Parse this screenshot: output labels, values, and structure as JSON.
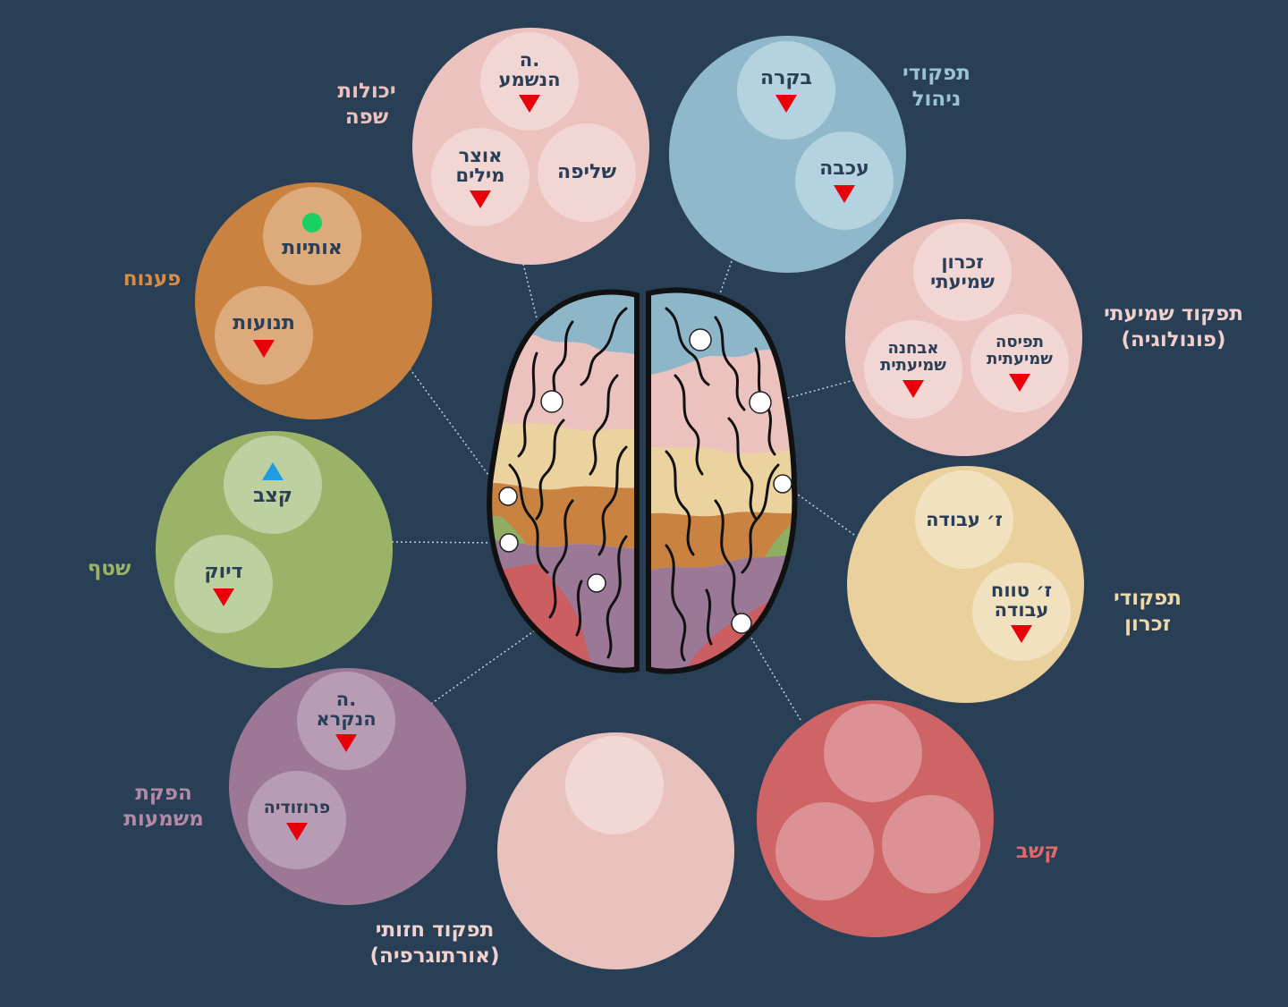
{
  "colors": {
    "background": "#283f55",
    "label_text": "#2a3f57",
    "decrease_marker": "#e8000b",
    "increase_marker": "#1e9de0",
    "normal_marker": "#18d160"
  },
  "groups": {
    "language": {
      "title_line1": "יכולות",
      "title_line2": "שפה",
      "color": "#ebc2be",
      "label_color": "#ebc2be",
      "items": {
        "auditory_comprehension": {
          "line1": "ה.",
          "line2": "הנשמע",
          "marker": "decrease"
        },
        "retrieval": {
          "line1": "שליפה",
          "marker": "none"
        },
        "vocabulary": {
          "line1": "אוצר",
          "line2": "מילים",
          "marker": "decrease"
        }
      }
    },
    "executive": {
      "title_line1": "תפקודי",
      "title_line2": "ניהול",
      "color": "#8fb8ca",
      "label_color": "#9cc3d3",
      "items": {
        "control": {
          "line1": "בקרה",
          "marker": "decrease"
        },
        "inhibition": {
          "line1": "עכבה",
          "marker": "decrease"
        }
      }
    },
    "decoding": {
      "title_line1": "פענוח",
      "color": "#c9823f",
      "label_color": "#d88c45",
      "items": {
        "letters": {
          "line1": "אותיות",
          "marker": "normal"
        },
        "vowels": {
          "line1": "תנועות",
          "marker": "decrease"
        }
      }
    },
    "auditory": {
      "title_line1": "תפקוד שמיעתי",
      "title_line2": "(פונולוגיה)",
      "color": "#ebc2be",
      "label_color": "#f0d0cc",
      "items": {
        "auditory_memory": {
          "line1": "זכרון",
          "line2": "שמיעתי",
          "marker": "none"
        },
        "auditory_perception": {
          "line1": "תפיסה",
          "line2": "שמיעתית",
          "marker": "decrease"
        },
        "auditory_discrimination": {
          "line1": "אבחנה",
          "line2": "שמיעתית",
          "marker": "decrease"
        }
      }
    },
    "fluency": {
      "title_line1": "שטף",
      "color": "#9ab368",
      "label_color": "#9ab368",
      "items": {
        "rate": {
          "line1": "קצב",
          "marker": "increase"
        },
        "accuracy": {
          "line1": "דיוק",
          "marker": "decrease"
        }
      }
    },
    "memory": {
      "title_line1": "תפקודי",
      "title_line2": "זכרון",
      "color": "#e9d09d",
      "label_color": "#f0d9a8",
      "items": {
        "working_memory": {
          "line1": "ז׳ עבודה",
          "marker": "none"
        },
        "long_working_memory": {
          "line1": "ז׳ טווח",
          "line2": "עבודה",
          "marker": "decrease"
        }
      }
    },
    "comprehension": {
      "title_line1": "הפקת",
      "title_line2": "משמעות",
      "color": "#9d7896",
      "label_color": "#b08aa8",
      "items": {
        "reading_comprehension": {
          "line1": "ה.",
          "line2": "הנקרא",
          "marker": "decrease"
        },
        "prosody": {
          "line1": "פרוזודיה",
          "marker": "decrease"
        }
      }
    },
    "visual": {
      "title_line1": "תפקוד חזותי",
      "title_line2": "(אורתוגרפיה)",
      "color": "#e9c1bd",
      "label_color": "#f0d2ce",
      "items": {
        "slot1": {
          "line1": "",
          "marker": "none"
        }
      }
    },
    "attention": {
      "title_line1": "קשב",
      "color": "#cf6466",
      "label_color": "#e0686b",
      "items": {
        "slot1": {
          "line1": "",
          "marker": "none"
        },
        "slot2": {
          "line1": "",
          "marker": "none"
        },
        "slot3": {
          "line1": "",
          "marker": "none"
        }
      }
    }
  },
  "brain": {
    "region_colors": {
      "blue": "#8db7c9",
      "pink": "#ebc2be",
      "yellow": "#ead39f",
      "orange": "#c9823f",
      "green": "#8fae62",
      "purple": "#9a7896",
      "red": "#cc5d60"
    }
  }
}
